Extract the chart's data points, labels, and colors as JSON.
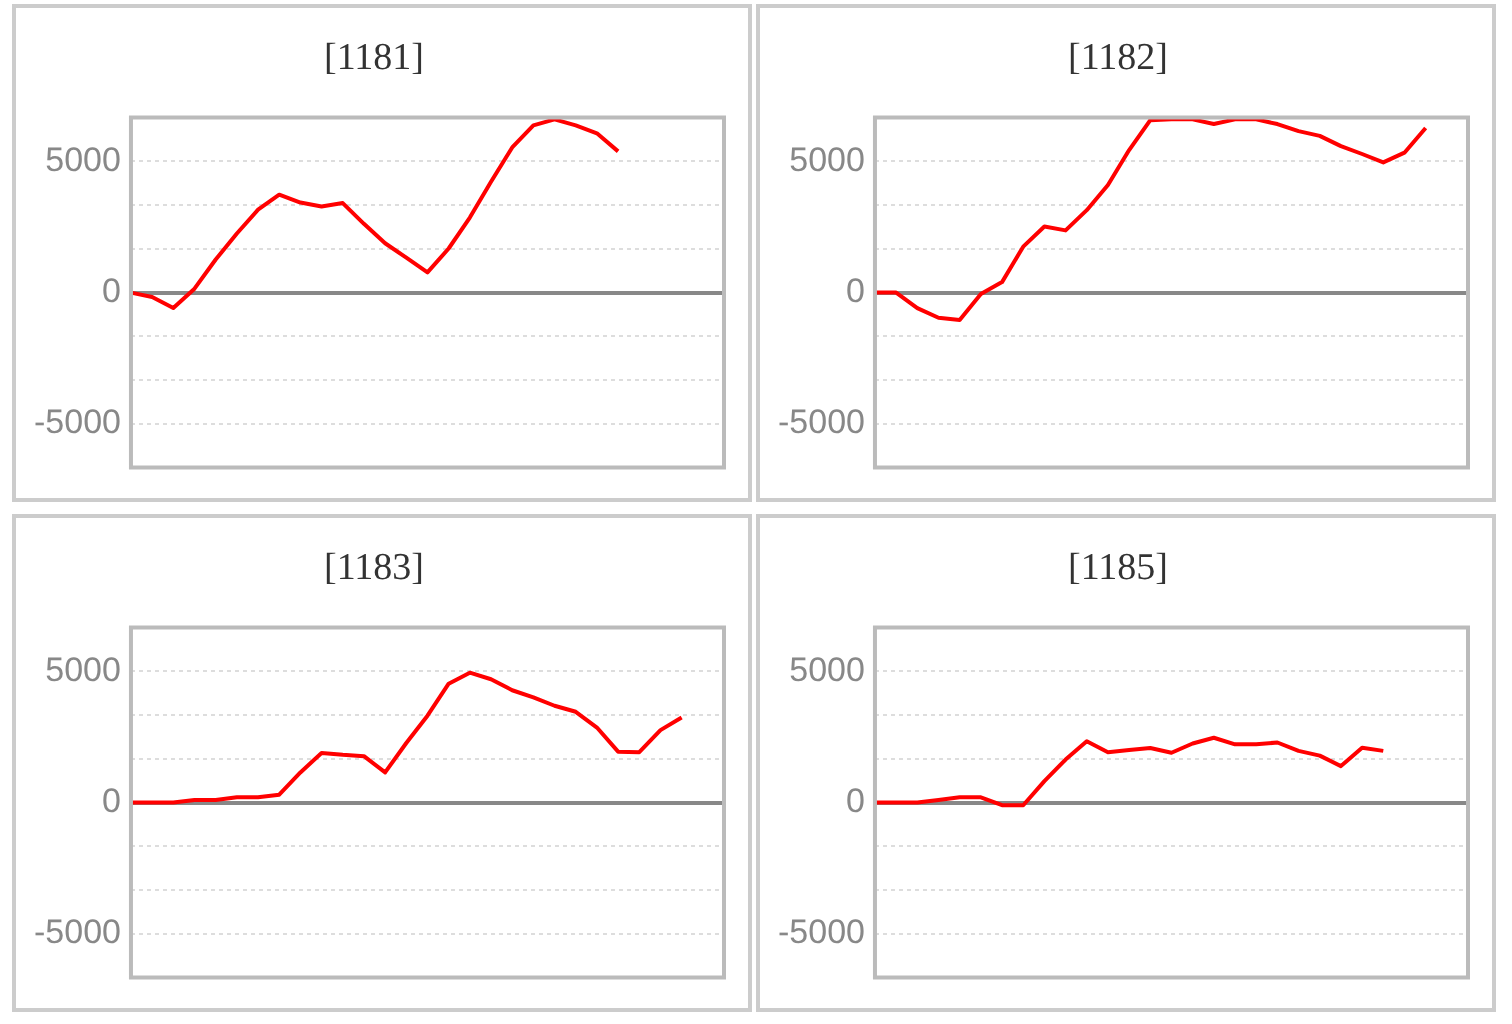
{
  "chart_data": [
    {
      "type": "line",
      "title": "[1181]",
      "categories": [
        null,
        null,
        null,
        null,
        null,
        null,
        null,
        null,
        null,
        null,
        null,
        null,
        null,
        null,
        null,
        null,
        null,
        null,
        null,
        null,
        null,
        null,
        null,
        null,
        null,
        null,
        null,
        null,
        null
      ],
      "series": [
        {
          "color": "#ff0000",
          "values": [
            0,
            -170,
            -590,
            150,
            1260,
            2250,
            3160,
            3730,
            3430,
            3280,
            3410,
            2620,
            1880,
            1330,
            770,
            1680,
            2860,
            4220,
            5530,
            6370,
            6600,
            6370,
            6070,
            5380,
            null,
            null,
            null,
            null,
            null
          ]
        }
      ],
      "ylim": [
        -6666.67,
        6666.67
      ],
      "yticks": [
        -5000,
        {
          "value": -3333.33,
          "label": null
        },
        {
          "value": -1666.67,
          "label": null
        },
        0,
        {
          "value": 1666.67,
          "label": null
        },
        {
          "value": 3333.33,
          "label": null
        },
        5000
      ],
      "grid": "y",
      "legend": false,
      "tick_labels": "y",
      "marker": "none",
      "line_style": "solid"
    },
    {
      "type": "line",
      "title": "[1182]",
      "categories": [
        null,
        null,
        null,
        null,
        null,
        null,
        null,
        null,
        null,
        null,
        null,
        null,
        null,
        null,
        null,
        null,
        null,
        null,
        null,
        null,
        null,
        null,
        null,
        null,
        null,
        null,
        null,
        null,
        null
      ],
      "series": [
        {
          "color": "#ff0000",
          "values": [
            0,
            0,
            -590,
            -960,
            -1040,
            -50,
            400,
            1750,
            2520,
            2370,
            3140,
            4100,
            5430,
            6570,
            6600,
            6600,
            6420,
            6600,
            6600,
            6420,
            6150,
            5970,
            5580,
            5280,
            4960,
            5330,
            6270,
            null,
            null
          ]
        }
      ],
      "ylim": [
        -6666.67,
        6666.67
      ],
      "yticks": [
        -5000,
        {
          "value": -3333.33,
          "label": null
        },
        {
          "value": -1666.67,
          "label": null
        },
        0,
        {
          "value": 1666.67,
          "label": null
        },
        {
          "value": 3333.33,
          "label": null
        },
        5000
      ],
      "grid": "y",
      "legend": false,
      "tick_labels": "y",
      "marker": "none",
      "line_style": "solid"
    },
    {
      "type": "line",
      "title": "[1183]",
      "categories": [
        null,
        null,
        null,
        null,
        null,
        null,
        null,
        null,
        null,
        null,
        null,
        null,
        null,
        null,
        null,
        null,
        null,
        null,
        null,
        null,
        null,
        null,
        null,
        null,
        null,
        null,
        null,
        null,
        null
      ],
      "series": [
        {
          "color": "#ff0000",
          "values": [
            0,
            0,
            0,
            100,
            100,
            200,
            200,
            300,
            1150,
            1890,
            1820,
            1770,
            1150,
            2270,
            3310,
            4530,
            4950,
            4700,
            4280,
            4010,
            3690,
            3460,
            2860,
            1940,
            1920,
            2760,
            3240,
            null,
            null
          ]
        }
      ],
      "ylim": [
        -6666.67,
        6666.67
      ],
      "yticks": [
        -5000,
        {
          "value": -3333.33,
          "label": null
        },
        {
          "value": -1666.67,
          "label": null
        },
        0,
        {
          "value": 1666.67,
          "label": null
        },
        {
          "value": 3333.33,
          "label": null
        },
        5000
      ],
      "grid": "y",
      "legend": false,
      "tick_labels": "y",
      "marker": "none",
      "line_style": "solid"
    },
    {
      "type": "line",
      "title": "[1185]",
      "categories": [
        null,
        null,
        null,
        null,
        null,
        null,
        null,
        null,
        null,
        null,
        null,
        null,
        null,
        null,
        null,
        null,
        null,
        null,
        null,
        null,
        null,
        null,
        null,
        null,
        null,
        null,
        null,
        null,
        null
      ],
      "series": [
        {
          "color": "#ff0000",
          "values": [
            0,
            0,
            0,
            100,
            200,
            200,
            -100,
            -100,
            820,
            1640,
            2340,
            1920,
            2000,
            2080,
            1900,
            2250,
            2470,
            2220,
            2220,
            2290,
            1970,
            1790,
            1390,
            2090,
            1970,
            null,
            null,
            null,
            null
          ]
        }
      ],
      "ylim": [
        -6666.67,
        6666.67
      ],
      "yticks": [
        -5000,
        {
          "value": -3333.33,
          "label": null
        },
        {
          "value": -1666.67,
          "label": null
        },
        0,
        {
          "value": 1666.67,
          "label": null
        },
        {
          "value": 3333.33,
          "label": null
        },
        5000
      ],
      "grid": "y",
      "legend": false,
      "tick_labels": "y",
      "marker": "none",
      "line_style": "solid"
    }
  ]
}
